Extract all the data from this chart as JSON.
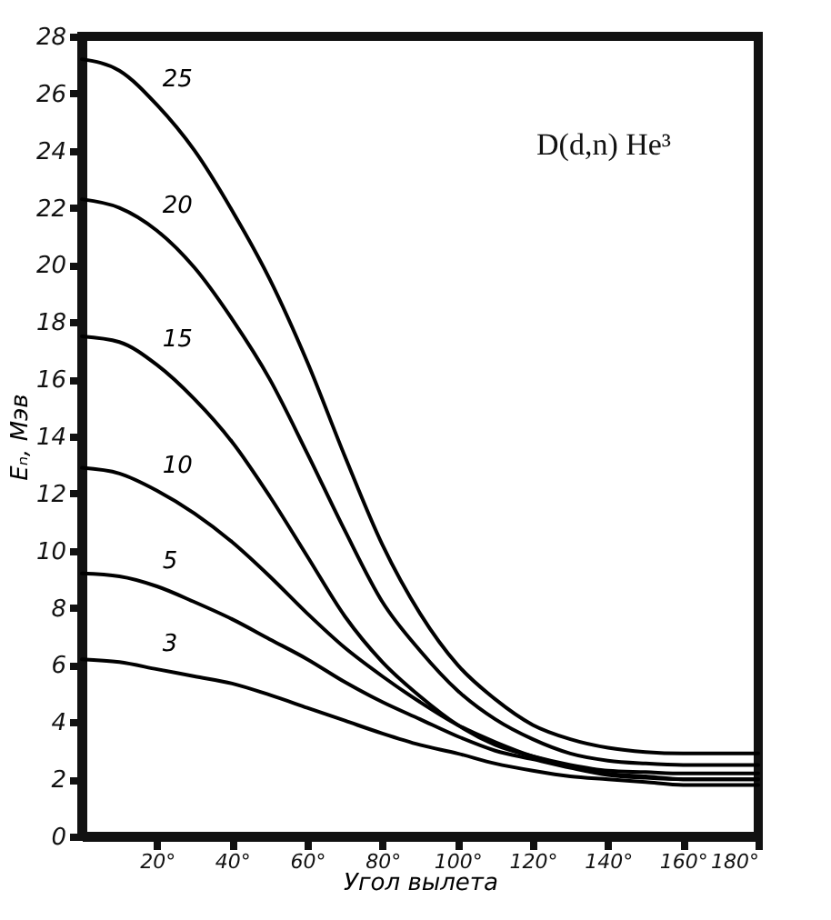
{
  "chart_data": {
    "type": "line",
    "xlabel": "Угол вылета",
    "ylabel": "Eₙ, Мэв",
    "annotations": [
      "D(d,n) He³"
    ],
    "x": [
      0,
      10,
      20,
      30,
      40,
      50,
      60,
      70,
      80,
      90,
      100,
      110,
      120,
      130,
      140,
      150,
      160,
      170,
      180
    ],
    "series": [
      {
        "name": "25",
        "color": "#000000",
        "values": [
          27.2,
          26.8,
          25.6,
          24.0,
          21.9,
          19.5,
          16.6,
          13.3,
          10.2,
          7.8,
          6.0,
          4.8,
          3.9,
          3.4,
          3.1,
          2.95,
          2.9,
          2.9,
          2.9
        ]
      },
      {
        "name": "20",
        "color": "#000000",
        "values": [
          22.3,
          22.0,
          21.2,
          19.9,
          18.1,
          16.0,
          13.4,
          10.7,
          8.2,
          6.5,
          5.1,
          4.1,
          3.4,
          2.9,
          2.65,
          2.55,
          2.5,
          2.5,
          2.5
        ]
      },
      {
        "name": "15",
        "color": "#000000",
        "values": [
          17.5,
          17.3,
          16.5,
          15.3,
          13.8,
          11.9,
          9.8,
          7.7,
          6.1,
          4.9,
          3.9,
          3.2,
          2.8,
          2.5,
          2.3,
          2.25,
          2.2,
          2.2,
          2.2
        ]
      },
      {
        "name": "10",
        "color": "#000000",
        "values": [
          12.9,
          12.7,
          12.1,
          11.3,
          10.3,
          9.1,
          7.8,
          6.6,
          5.6,
          4.7,
          3.9,
          3.3,
          2.8,
          2.45,
          2.2,
          2.1,
          2.0,
          2.0,
          2.0
        ]
      },
      {
        "name": "5",
        "color": "#000000",
        "values": [
          9.2,
          9.1,
          8.75,
          8.2,
          7.6,
          6.9,
          6.2,
          5.4,
          4.7,
          4.1,
          3.5,
          3.0,
          2.7,
          2.4,
          2.15,
          2.05,
          2.0,
          2.0,
          2.0
        ]
      },
      {
        "name": "3",
        "color": "#000000",
        "values": [
          6.2,
          6.1,
          5.85,
          5.6,
          5.35,
          4.95,
          4.5,
          4.05,
          3.6,
          3.2,
          2.9,
          2.55,
          2.3,
          2.1,
          2.0,
          1.9,
          1.8,
          1.8,
          1.8
        ]
      }
    ],
    "xlim": [
      0,
      180
    ],
    "ylim": [
      0,
      28
    ],
    "xticks": [
      {
        "value": 20,
        "label": "20°"
      },
      {
        "value": 40,
        "label": "40°"
      },
      {
        "value": 60,
        "label": "60°"
      },
      {
        "value": 80,
        "label": "80°"
      },
      {
        "value": 100,
        "label": "100°"
      },
      {
        "value": 120,
        "label": "120°"
      },
      {
        "value": 140,
        "label": "140°"
      },
      {
        "value": 160,
        "label": "160°"
      },
      {
        "value": 180,
        "label": "180°"
      }
    ],
    "yticks": [
      0,
      2,
      4,
      6,
      8,
      10,
      12,
      14,
      16,
      18,
      20,
      22,
      24,
      26,
      28
    ],
    "grid": false,
    "legend": false,
    "marker": "none",
    "line_style": "solid"
  }
}
